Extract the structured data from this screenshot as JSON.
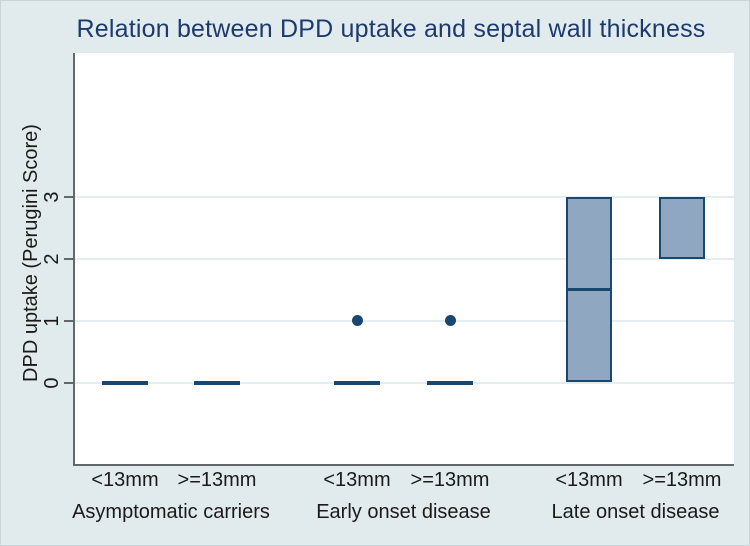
{
  "chart_data": {
    "type": "box",
    "title": "Relation between DPD uptake and septal wall thickness",
    "ylabel": "DPD uptake (Perugini Score)",
    "yticks": [
      0,
      1,
      2,
      3
    ],
    "ylim": [
      -1.3,
      5.3
    ],
    "grid": "horizontal",
    "legend": "none",
    "groups": [
      {
        "label": "Asymptomatic carriers",
        "boxes": [
          {
            "label": "<13mm",
            "q1": 0,
            "median": 0,
            "q3": 0,
            "outliers": []
          },
          {
            "label": ">=13mm",
            "q1": 0,
            "median": 0,
            "q3": 0,
            "outliers": []
          }
        ]
      },
      {
        "label": "Early onset disease",
        "boxes": [
          {
            "label": "<13mm",
            "q1": 0,
            "median": 0,
            "q3": 0,
            "outliers": [
              1
            ]
          },
          {
            "label": ">=13mm",
            "q1": 0,
            "median": 0,
            "q3": 0,
            "outliers": [
              1
            ]
          }
        ]
      },
      {
        "label": "Late onset disease",
        "boxes": [
          {
            "label": "<13mm",
            "q1": 0,
            "median": 1.5,
            "q3": 3,
            "outliers": []
          },
          {
            "label": ">=13mm",
            "q1": 2,
            "median": 3,
            "q3": 3,
            "outliers": []
          }
        ]
      }
    ],
    "colors": {
      "background": "#e1ebee",
      "plot_background": "#ffffff",
      "title": "#1d3a6d",
      "box_fill": "#90a7c1",
      "box_border": "#1a476f",
      "gridline": "#e4eef0",
      "axis": "#63686b",
      "text": "#1a1a1a"
    }
  }
}
